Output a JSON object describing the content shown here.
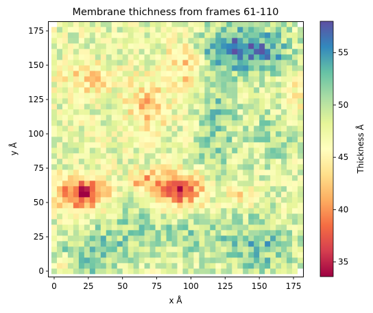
{
  "chart_data": {
    "type": "heatmap",
    "title": "Membrane thichness from frames 61-110",
    "xlabel": "x Å",
    "ylabel": "y Å",
    "xlim": [
      -4,
      182
    ],
    "ylim": [
      -4,
      182
    ],
    "x_ticks": [
      0,
      25,
      50,
      75,
      100,
      125,
      150,
      175
    ],
    "y_ticks": [
      0,
      25,
      50,
      75,
      100,
      125,
      150,
      175
    ],
    "grid": {
      "x0": -2,
      "y0": -2,
      "cell": 4,
      "nx": 46,
      "ny": 46
    },
    "colorbar": {
      "label": "Thickness Å",
      "range": [
        33.6,
        58.0
      ],
      "ticks": [
        35,
        40,
        45,
        50,
        55
      ],
      "colormap": "Spectral",
      "stops": [
        "#9e0142",
        "#d53e4f",
        "#f46d43",
        "#fdae61",
        "#fee08b",
        "#ffffbf",
        "#e6f598",
        "#abdda4",
        "#66c2a5",
        "#3288bd",
        "#5e4fa2"
      ]
    },
    "base_value": 47.5,
    "features": [
      {
        "x": 20,
        "y": 56,
        "sx": 13,
        "sy": 8,
        "a": -12
      },
      {
        "x": 90,
        "y": 60,
        "sx": 13,
        "sy": 9,
        "a": -12
      },
      {
        "x": 65,
        "y": 66,
        "sx": 8,
        "sy": 5,
        "a": -5
      },
      {
        "x": 68,
        "y": 120,
        "sx": 10,
        "sy": 14,
        "a": -5
      },
      {
        "x": 25,
        "y": 140,
        "sx": 14,
        "sy": 8,
        "a": -4
      },
      {
        "x": 95,
        "y": 155,
        "sx": 9,
        "sy": 9,
        "a": -5
      },
      {
        "x": 100,
        "y": 138,
        "sx": 7,
        "sy": 6,
        "a": -3
      },
      {
        "x": 130,
        "y": 162,
        "sx": 18,
        "sy": 12,
        "a": 8
      },
      {
        "x": 160,
        "y": 160,
        "sx": 14,
        "sy": 14,
        "a": 4
      },
      {
        "x": 120,
        "y": 112,
        "sx": 10,
        "sy": 20,
        "a": 4
      },
      {
        "x": 160,
        "y": 100,
        "sx": 14,
        "sy": 18,
        "a": 3
      },
      {
        "x": 150,
        "y": 20,
        "sx": 18,
        "sy": 16,
        "a": 5
      },
      {
        "x": 20,
        "y": 10,
        "sx": 22,
        "sy": 14,
        "a": 4
      },
      {
        "x": 55,
        "y": 30,
        "sx": 18,
        "sy": 14,
        "a": 3
      },
      {
        "x": 100,
        "y": 25,
        "sx": 20,
        "sy": 12,
        "a": 3
      },
      {
        "x": 110,
        "y": 80,
        "sx": 18,
        "sy": 10,
        "a": 2
      },
      {
        "x": 5,
        "y": 5,
        "sx": 8,
        "sy": 6,
        "a": -4
      },
      {
        "x": 175,
        "y": 125,
        "sx": 8,
        "sy": 14,
        "a": -3
      },
      {
        "x": 140,
        "y": 55,
        "sx": 8,
        "sy": 6,
        "a": -4
      }
    ],
    "noise_amplitude": 3.2,
    "missing_cells": [
      [
        -2,
        178
      ],
      [
        178,
        -2
      ],
      [
        178,
        178
      ]
    ]
  }
}
